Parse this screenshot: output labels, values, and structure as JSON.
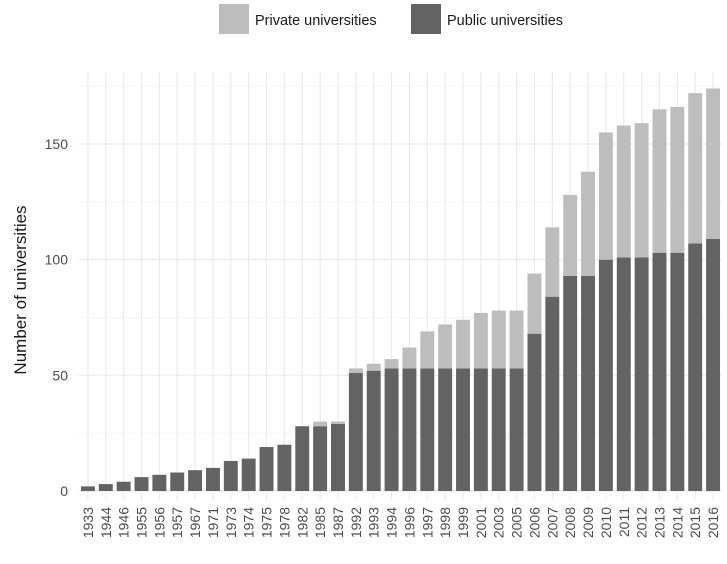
{
  "chart_data": {
    "type": "bar",
    "stacked": true,
    "title": "",
    "xlabel": "",
    "ylabel": "Number of universities",
    "ylim": [
      0,
      175
    ],
    "yticks": [
      0,
      50,
      100,
      150
    ],
    "grid": true,
    "legend_position": "top",
    "categories": [
      "1933",
      "1944",
      "1946",
      "1955",
      "1956",
      "1957",
      "1967",
      "1971",
      "1973",
      "1974",
      "1975",
      "1978",
      "1982",
      "1985",
      "1987",
      "1992",
      "1993",
      "1994",
      "1996",
      "1997",
      "1998",
      "1999",
      "2001",
      "2003",
      "2005",
      "2006",
      "2007",
      "2008",
      "2009",
      "2010",
      "2011",
      "2012",
      "2013",
      "2014",
      "2015",
      "2016"
    ],
    "series": [
      {
        "name": "Public universities",
        "color": "#636363",
        "values": [
          2,
          3,
          4,
          6,
          7,
          8,
          9,
          10,
          13,
          14,
          19,
          20,
          28,
          28,
          29,
          51,
          52,
          53,
          53,
          53,
          53,
          53,
          53,
          53,
          53,
          68,
          84,
          93,
          93,
          100,
          101,
          101,
          103,
          103,
          107,
          109
        ]
      },
      {
        "name": "Private universities",
        "color": "#bdbdbd",
        "values": [
          0,
          0,
          0,
          0,
          0,
          0,
          0,
          0,
          0,
          0,
          0,
          0,
          0,
          2,
          1,
          2,
          3,
          4,
          9,
          16,
          19,
          21,
          24,
          25,
          25,
          26,
          30,
          35,
          45,
          55,
          57,
          58,
          62,
          63,
          65,
          65
        ]
      }
    ]
  }
}
